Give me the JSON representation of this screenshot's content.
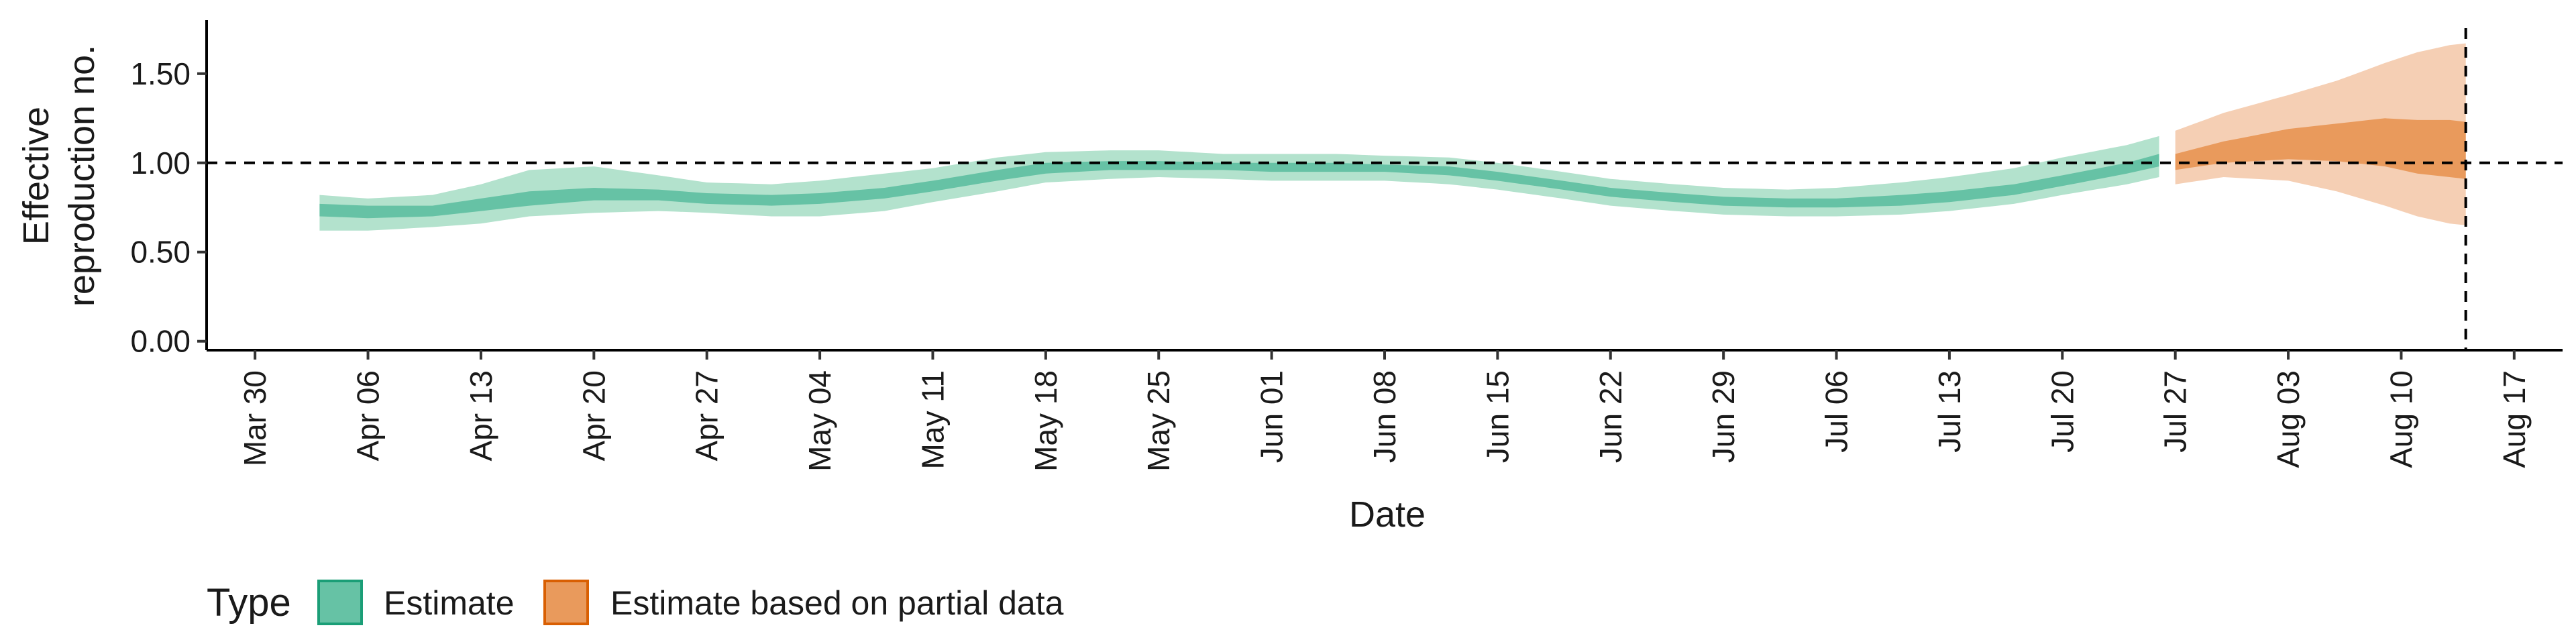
{
  "chart_data": {
    "type": "area",
    "xlabel": "Date",
    "ylabel_lines": [
      "Effective",
      "reproduction no."
    ],
    "xlim": [
      "2020-03-27",
      "2020-08-20"
    ],
    "ylim": [
      -0.05,
      1.8
    ],
    "x_ticks": [
      "2020-03-30",
      "2020-04-06",
      "2020-04-13",
      "2020-04-20",
      "2020-04-27",
      "2020-05-04",
      "2020-05-11",
      "2020-05-18",
      "2020-05-25",
      "2020-06-01",
      "2020-06-08",
      "2020-06-15",
      "2020-06-22",
      "2020-06-29",
      "2020-07-06",
      "2020-07-13",
      "2020-07-20",
      "2020-07-27",
      "2020-08-03",
      "2020-08-10",
      "2020-08-17"
    ],
    "x_tick_labels": [
      "Mar 30",
      "Apr 06",
      "Apr 13",
      "Apr 20",
      "Apr 27",
      "May 04",
      "May 11",
      "May 18",
      "May 25",
      "Jun 01",
      "Jun 08",
      "Jun 15",
      "Jun 22",
      "Jun 29",
      "Jul 06",
      "Jul 13",
      "Jul 20",
      "Jul 27",
      "Aug 03",
      "Aug 10",
      "Aug 17"
    ],
    "y_ticks": [
      0,
      0.5,
      1,
      1.5
    ],
    "y_tick_labels": [
      "0.00",
      "0.50",
      "1.00",
      "1.50"
    ],
    "reference_line_y": 1.0,
    "reference_line_x": "2020-08-14",
    "grid": false,
    "legend": {
      "title": "Type",
      "placement": "bottom-left",
      "entries": [
        {
          "label": "Estimate",
          "fill": "#66c2a5",
          "stroke": "#1b9e77"
        },
        {
          "label": "Estimate based on partial data",
          "fill": "#e99a5c",
          "stroke": "#d95f02"
        }
      ]
    },
    "series": [
      {
        "label": "Estimate",
        "colors": {
          "outer": "#b3e2cd",
          "inner": "#66c2a5"
        },
        "points": [
          {
            "date": "2020-04-03",
            "lo90": 0.62,
            "lo50": 0.7,
            "hi50": 0.77,
            "hi90": 0.82
          },
          {
            "date": "2020-04-06",
            "lo90": 0.62,
            "lo50": 0.69,
            "hi50": 0.76,
            "hi90": 0.8
          },
          {
            "date": "2020-04-10",
            "lo90": 0.64,
            "lo50": 0.7,
            "hi50": 0.76,
            "hi90": 0.82
          },
          {
            "date": "2020-04-13",
            "lo90": 0.66,
            "lo50": 0.73,
            "hi50": 0.8,
            "hi90": 0.88
          },
          {
            "date": "2020-04-16",
            "lo90": 0.7,
            "lo50": 0.76,
            "hi50": 0.84,
            "hi90": 0.96
          },
          {
            "date": "2020-04-20",
            "lo90": 0.72,
            "lo50": 0.79,
            "hi50": 0.86,
            "hi90": 0.98
          },
          {
            "date": "2020-04-24",
            "lo90": 0.73,
            "lo50": 0.79,
            "hi50": 0.85,
            "hi90": 0.93
          },
          {
            "date": "2020-04-27",
            "lo90": 0.72,
            "lo50": 0.77,
            "hi50": 0.83,
            "hi90": 0.89
          },
          {
            "date": "2020-05-01",
            "lo90": 0.7,
            "lo50": 0.76,
            "hi50": 0.82,
            "hi90": 0.88
          },
          {
            "date": "2020-05-04",
            "lo90": 0.7,
            "lo50": 0.77,
            "hi50": 0.83,
            "hi90": 0.9
          },
          {
            "date": "2020-05-08",
            "lo90": 0.73,
            "lo50": 0.8,
            "hi50": 0.86,
            "hi90": 0.94
          },
          {
            "date": "2020-05-11",
            "lo90": 0.78,
            "lo50": 0.84,
            "hi50": 0.9,
            "hi90": 0.97
          },
          {
            "date": "2020-05-15",
            "lo90": 0.84,
            "lo50": 0.9,
            "hi50": 0.96,
            "hi90": 1.03
          },
          {
            "date": "2020-05-18",
            "lo90": 0.89,
            "lo50": 0.94,
            "hi50": 1.0,
            "hi90": 1.06
          },
          {
            "date": "2020-05-22",
            "lo90": 0.91,
            "lo50": 0.96,
            "hi50": 1.01,
            "hi90": 1.07
          },
          {
            "date": "2020-05-25",
            "lo90": 0.92,
            "lo50": 0.96,
            "hi50": 1.01,
            "hi90": 1.07
          },
          {
            "date": "2020-05-29",
            "lo90": 0.91,
            "lo50": 0.96,
            "hi50": 1.0,
            "hi90": 1.05
          },
          {
            "date": "2020-06-01",
            "lo90": 0.9,
            "lo50": 0.95,
            "hi50": 1.0,
            "hi90": 1.05
          },
          {
            "date": "2020-06-05",
            "lo90": 0.9,
            "lo50": 0.95,
            "hi50": 1.0,
            "hi90": 1.05
          },
          {
            "date": "2020-06-08",
            "lo90": 0.9,
            "lo50": 0.95,
            "hi50": 0.99,
            "hi90": 1.04
          },
          {
            "date": "2020-06-12",
            "lo90": 0.88,
            "lo50": 0.93,
            "hi50": 0.98,
            "hi90": 1.03
          },
          {
            "date": "2020-06-15",
            "lo90": 0.85,
            "lo50": 0.9,
            "hi50": 0.95,
            "hi90": 1.0
          },
          {
            "date": "2020-06-19",
            "lo90": 0.8,
            "lo50": 0.85,
            "hi50": 0.9,
            "hi90": 0.95
          },
          {
            "date": "2020-06-22",
            "lo90": 0.76,
            "lo50": 0.81,
            "hi50": 0.86,
            "hi90": 0.91
          },
          {
            "date": "2020-06-26",
            "lo90": 0.73,
            "lo50": 0.78,
            "hi50": 0.83,
            "hi90": 0.88
          },
          {
            "date": "2020-06-29",
            "lo90": 0.71,
            "lo50": 0.76,
            "hi50": 0.81,
            "hi90": 0.86
          },
          {
            "date": "2020-07-03",
            "lo90": 0.7,
            "lo50": 0.75,
            "hi50": 0.8,
            "hi90": 0.85
          },
          {
            "date": "2020-07-06",
            "lo90": 0.7,
            "lo50": 0.75,
            "hi50": 0.8,
            "hi90": 0.86
          },
          {
            "date": "2020-07-10",
            "lo90": 0.71,
            "lo50": 0.76,
            "hi50": 0.82,
            "hi90": 0.89
          },
          {
            "date": "2020-07-13",
            "lo90": 0.73,
            "lo50": 0.78,
            "hi50": 0.84,
            "hi90": 0.92
          },
          {
            "date": "2020-07-17",
            "lo90": 0.77,
            "lo50": 0.82,
            "hi50": 0.88,
            "hi90": 0.97
          },
          {
            "date": "2020-07-20",
            "lo90": 0.82,
            "lo50": 0.87,
            "hi50": 0.93,
            "hi90": 1.03
          },
          {
            "date": "2020-07-24",
            "lo90": 0.88,
            "lo50": 0.94,
            "hi50": 1.0,
            "hi90": 1.1
          },
          {
            "date": "2020-07-26",
            "lo90": 0.92,
            "lo50": 0.98,
            "hi50": 1.05,
            "hi90": 1.15
          }
        ]
      },
      {
        "label": "Estimate based on partial data",
        "colors": {
          "outer": "#f5cfb4",
          "inner": "#e99a5c"
        },
        "points": [
          {
            "date": "2020-07-27",
            "lo90": 0.88,
            "lo50": 0.96,
            "hi50": 1.05,
            "hi90": 1.18
          },
          {
            "date": "2020-07-30",
            "lo90": 0.92,
            "lo50": 1.0,
            "hi50": 1.12,
            "hi90": 1.28
          },
          {
            "date": "2020-08-03",
            "lo90": 0.9,
            "lo50": 1.02,
            "hi50": 1.19,
            "hi90": 1.38
          },
          {
            "date": "2020-08-06",
            "lo90": 0.84,
            "lo50": 1.01,
            "hi50": 1.22,
            "hi90": 1.46
          },
          {
            "date": "2020-08-09",
            "lo90": 0.76,
            "lo50": 0.98,
            "hi50": 1.25,
            "hi90": 1.56
          },
          {
            "date": "2020-08-11",
            "lo90": 0.7,
            "lo50": 0.94,
            "hi50": 1.24,
            "hi90": 1.62
          },
          {
            "date": "2020-08-13",
            "lo90": 0.66,
            "lo50": 0.92,
            "hi50": 1.24,
            "hi90": 1.66
          },
          {
            "date": "2020-08-14",
            "lo90": 0.65,
            "lo50": 0.91,
            "hi50": 1.23,
            "hi90": 1.67
          }
        ]
      }
    ]
  }
}
